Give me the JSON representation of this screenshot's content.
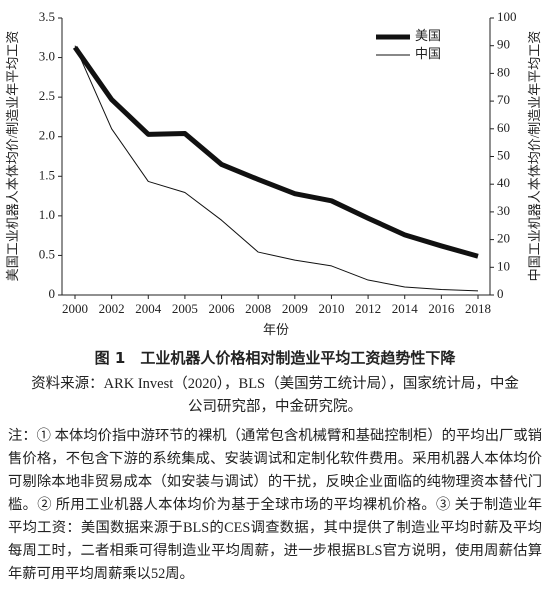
{
  "chart_data": {
    "type": "line",
    "categories": [
      "2000",
      "2002",
      "2004",
      "2005",
      "2006",
      "2008",
      "2009",
      "2010",
      "2012",
      "2014",
      "2016",
      "2018"
    ],
    "xlabel": "年份",
    "ylabel": "美国工业机器人本体均价/制造业年平均工资",
    "y2label": "中国工业机器人本体均价/制造业年平均工资",
    "ylim": [
      0,
      3.5
    ],
    "yticks": [
      0,
      {
        "value": 0.5,
        "label": "0.5"
      },
      {
        "value": 1,
        "label": "1.0"
      },
      {
        "value": 1.5,
        "label": "1.5"
      },
      {
        "value": 2,
        "label": "2.0"
      },
      {
        "value": 2.5,
        "label": "2.5"
      },
      {
        "value": 3,
        "label": "3.0"
      },
      {
        "value": 3.5,
        "label": "3.5"
      }
    ],
    "y2lim": [
      0,
      100
    ],
    "y2ticks": [
      0,
      10,
      20,
      30,
      40,
      50,
      60,
      70,
      80,
      90,
      100
    ],
    "series": [
      {
        "name": "美国",
        "color": "#111111",
        "width": 5,
        "values": [
          3.13,
          2.47,
          2.03,
          2.04,
          1.65,
          1.46,
          1.28,
          1.19,
          0.97,
          0.76,
          0.62,
          0.49
        ]
      },
      {
        "name": "中国",
        "color": "#111111",
        "width": 1,
        "axis": "y2",
        "values": [
          90,
          60,
          41,
          37,
          27,
          15.5,
          12.6,
          10.5,
          5.4,
          2.9,
          2,
          1.5
        ]
      }
    ]
  },
  "caption": {
    "title": "图 1　工业机器人价格相对制造业平均工资趋势性下降",
    "source": "资料来源：ARK Invest（2020），BLS（美国劳工统计局），国家统计局，中金公司研究部，中金研究院。",
    "notes": "注：① 本体均价指中游环节的裸机（通常包含机械臂和基础控制柜）的平均出厂或销售价格，不包含下游的系统集成、安装调试和定制化软件费用。采用机器人本体均价可剔除本地非贸易成本（如安装与调试）的干扰，反映企业面临的纯物理资本替代门槛。② 所用工业机器人本体均价为基于全球市场的平均裸机价格。③ 关于制造业年平均工资：美国数据来源于BLS的CES调查数据，其中提供了制造业平均时薪及平均每周工时，二者相乘可得制造业平均周薪，进一步根据BLS官方说明，使用周薪估算年薪可用平均周薪乘以52周。"
  }
}
